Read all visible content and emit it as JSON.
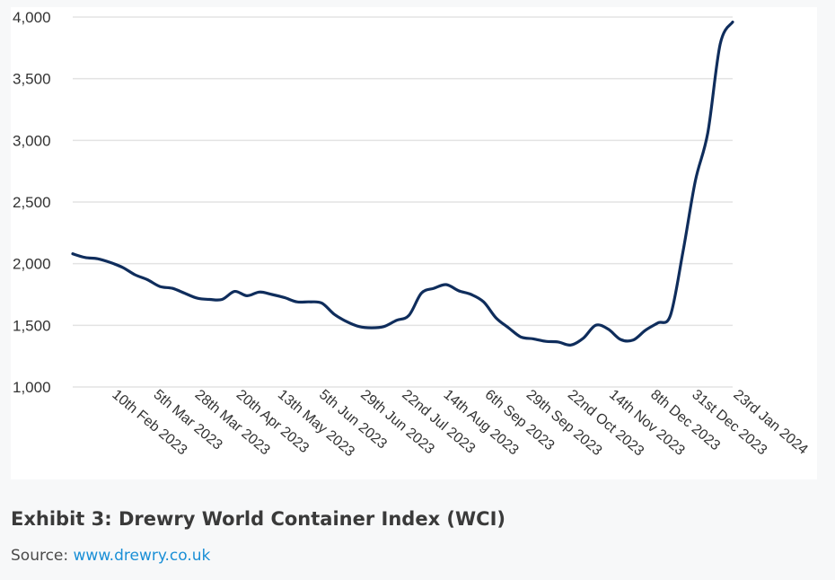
{
  "chart_data": {
    "type": "line",
    "title": "",
    "xlabel": "",
    "ylabel": "",
    "ylim": [
      1000,
      4000
    ],
    "yticks": [
      1000,
      1500,
      2000,
      2500,
      3000,
      3500,
      4000
    ],
    "ytick_labels": [
      "1,000",
      "1,500",
      "2,000",
      "2,500",
      "3,000",
      "3,500",
      "4,000"
    ],
    "xtick_labels": [
      "10th Feb 2023",
      "5th Mar 2023",
      "28th Mar 2023",
      "20th Apr 2023",
      "13th May 2023",
      "5th Jun 2023",
      "29th Jun 2023",
      "22nd Jul 2023",
      "14th Aug 2023",
      "6th Sep 2023",
      "29th Sep 2023",
      "22nd Oct 2023",
      "14th Nov 2023",
      "8th Dec 2023",
      "31st Dec 2023",
      "23rd Jan 2024"
    ],
    "grid": true,
    "legend": "none",
    "line_color": "#0f2d5c",
    "x": [
      "19th Jan 2023",
      "26th Jan 2023",
      "2nd Feb 2023",
      "9th Feb 2023",
      "16th Feb 2023",
      "23rd Feb 2023",
      "2nd Mar 2023",
      "9th Mar 2023",
      "16th Mar 2023",
      "23rd Mar 2023",
      "30th Mar 2023",
      "6th Apr 2023",
      "13th Apr 2023",
      "20th Apr 2023",
      "27th Apr 2023",
      "4th May 2023",
      "11th May 2023",
      "18th May 2023",
      "25th May 2023",
      "1st Jun 2023",
      "8th Jun 2023",
      "15th Jun 2023",
      "22nd Jun 2023",
      "29th Jun 2023",
      "6th Jul 2023",
      "13th Jul 2023",
      "20th Jul 2023",
      "27th Jul 2023",
      "3rd Aug 2023",
      "10th Aug 2023",
      "17th Aug 2023",
      "24th Aug 2023",
      "31st Aug 2023",
      "7th Sep 2023",
      "14th Sep 2023",
      "21st Sep 2023",
      "28th Sep 2023",
      "5th Oct 2023",
      "12th Oct 2023",
      "19th Oct 2023",
      "26th Oct 2023",
      "2nd Nov 2023",
      "9th Nov 2023",
      "16th Nov 2023",
      "23rd Nov 2023",
      "30th Nov 2023",
      "7th Dec 2023",
      "14th Dec 2023",
      "21st Dec 2023",
      "28th Dec 2023",
      "4th Jan 2024",
      "11th Jan 2024",
      "18th Jan 2024",
      "25th Jan 2024"
    ],
    "series": [
      {
        "values": [
          2080,
          2050,
          2040,
          2010,
          1970,
          1910,
          1870,
          1815,
          1800,
          1760,
          1720,
          1710,
          1710,
          1775,
          1740,
          1770,
          1750,
          1725,
          1690,
          1690,
          1680,
          1590,
          1530,
          1490,
          1480,
          1490,
          1540,
          1580,
          1760,
          1800,
          1830,
          1780,
          1750,
          1690,
          1560,
          1480,
          1405,
          1390,
          1370,
          1365,
          1340,
          1395,
          1500,
          1470,
          1385,
          1380,
          1460,
          1520,
          1580,
          2090,
          2670,
          3060,
          3780,
          3960
        ]
      }
    ]
  },
  "caption": {
    "title": "Exhibit 3: Drewry World Container Index (WCI)",
    "source_prefix": "Source: ",
    "source_link": "www.drewry.co.uk"
  }
}
